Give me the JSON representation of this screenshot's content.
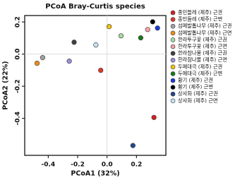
{
  "chart_data": {
    "type": "scatter",
    "title": "PCoA Bray-Curtis species",
    "x_label": "PCoA1 (32%)",
    "y_label": "PCoA2 (22%)",
    "xlim": [
      -0.56,
      0.4
    ],
    "ylim": [
      -0.63,
      0.24
    ],
    "xticks": [
      -0.4,
      -0.2,
      {
        "value": 0,
        "label": "0.0"
      },
      0.2
    ],
    "yticks": [
      0.2,
      {
        "value": 0,
        "label": "0.0"
      },
      -0.2,
      -0.4
    ],
    "zero_lines": true,
    "legend": "right",
    "series": [
      {
        "name": "종민들레 (제주) 근권",
        "color": "#d62020",
        "x": [
          0.319
        ],
        "values": [
          -0.394
        ]
      },
      {
        "name": "종민들레 (제주) 근면",
        "color": "#e03a2a",
        "x": [
          -0.043
        ],
        "values": [
          -0.101
        ]
      },
      {
        "name": "섬메발톱나무 (제주) 근권",
        "color": "#a0a0a0",
        "x": [
          -0.438
        ],
        "values": [
          -0.022
        ]
      },
      {
        "name": "섬메발톱나무 (제주) 근면",
        "color": "#f08c1a",
        "x": [
          -0.476
        ],
        "values": [
          -0.057
        ]
      },
      {
        "name": "한라투구꽃 (제주) 근권",
        "color": "#a8d8a0",
        "x": [
          0.095
        ],
        "values": [
          0.114
        ]
      },
      {
        "name": "한라투구꽃 (제주) 근면",
        "color": "#f4a0a8",
        "x": [
          0.276
        ],
        "values": [
          0.153
        ]
      },
      {
        "name": "한라참나물 (제주) 근권",
        "color": "#404040",
        "x": [
          -0.224
        ],
        "values": [
          0.074
        ]
      },
      {
        "name": "한라참나물 (제주) 근면",
        "color": "#9a90dc",
        "x": [
          -0.257
        ],
        "values": [
          -0.044
        ]
      },
      {
        "name": "두메대극 (제주) 근권",
        "color": "#f2c20a",
        "x": [
          0.014
        ],
        "values": [
          0.171
        ]
      },
      {
        "name": "두메대극 (제주) 근면",
        "color": "#1a7a1a",
        "x": [
          0.229
        ],
        "values": [
          0.101
        ]
      },
      {
        "name": "황기 (제주) 근권",
        "color": "#1a3cd6",
        "x": [
          0.343
        ],
        "values": [
          0.162
        ]
      },
      {
        "name": "황기 (제주) 근면",
        "color": "#000000",
        "x": [
          0.31
        ],
        "values": [
          0.201
        ]
      },
      {
        "name": "상사화 (제주) 근권",
        "color": "#24478f",
        "x": [
          0.176
        ],
        "values": [
          -0.569
        ]
      },
      {
        "name": "상사화 (제주) 근면",
        "color": "#c4e2f2",
        "x": [
          -0.076
        ],
        "values": [
          0.057
        ]
      }
    ]
  }
}
